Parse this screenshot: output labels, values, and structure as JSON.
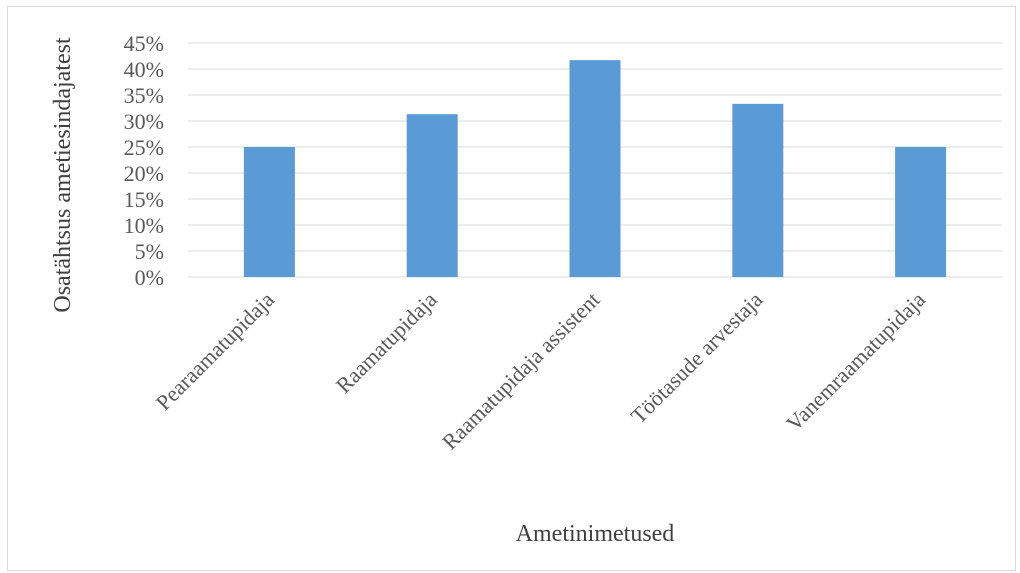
{
  "chart_data": {
    "type": "bar",
    "categories": [
      "Pearaamatupidaja",
      "Raamatupidaja",
      "Raamatupidaja assistent",
      "Töötasude arvestaja",
      "Vanemraamatupidaja"
    ],
    "values": [
      25,
      31.3,
      41.7,
      33.3,
      25
    ],
    "value_unit": "%",
    "ylim": [
      0,
      45
    ],
    "yticks": [
      0,
      5,
      10,
      15,
      20,
      25,
      30,
      35,
      40,
      45
    ],
    "ytick_labels": [
      "0%",
      "5%",
      "10%",
      "15%",
      "20%",
      "25%",
      "30%",
      "35%",
      "40%",
      "45%"
    ],
    "title": "",
    "xlabel": "Ametinimetused",
    "ylabel": "Osatähtsus ametiesindajatest",
    "grid": true,
    "legend": "none",
    "bar_color": "#5b9bd5",
    "grid_color": "#d9d9d9"
  }
}
